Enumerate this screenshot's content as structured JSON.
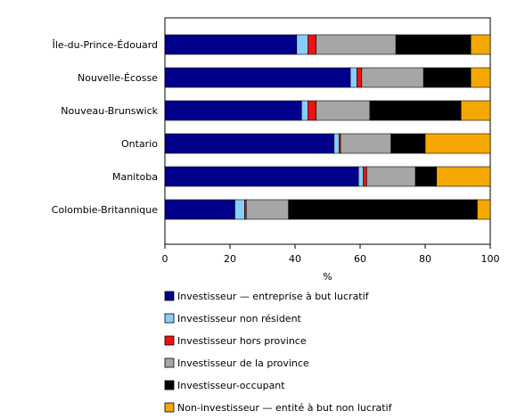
{
  "chart_data": {
    "type": "bar",
    "orientation": "horizontal",
    "stacked": true,
    "xlabel": "%",
    "xlim": [
      0,
      100
    ],
    "xticks": [
      "0",
      "20",
      "40",
      "60",
      "80",
      "100"
    ],
    "grid": false,
    "legend_position": "bottom",
    "categories": [
      "Île-du-Prince-Édouard",
      "Nouvelle-Écosse",
      "Nouveau-Brunswick",
      "Ontario",
      "Manitoba",
      "Colombie-Britannique"
    ],
    "series": [
      {
        "name": "Investisseur — entreprise à but lucratif",
        "color": "#00008b",
        "values": [
          40.5,
          57.0,
          42.0,
          52.0,
          59.5,
          21.5
        ]
      },
      {
        "name": "Investisseur non résident",
        "color": "#87cefa",
        "values": [
          3.5,
          2.0,
          2.0,
          1.5,
          1.5,
          3.0
        ]
      },
      {
        "name": "Investisseur hors province",
        "color": "#ee1111",
        "values": [
          2.5,
          1.5,
          2.5,
          0.5,
          1.0,
          0.5
        ]
      },
      {
        "name": "Investisseur de la province",
        "color": "#a6a6a6",
        "values": [
          24.5,
          19.0,
          16.5,
          15.5,
          15.0,
          13.0
        ]
      },
      {
        "name": "Investisseur-occupant",
        "color": "#000000",
        "values": [
          23.0,
          14.5,
          28.0,
          10.5,
          6.5,
          58.0
        ]
      },
      {
        "name": "Non-investisseur — entité à but non lucratif",
        "color": "#f5a800",
        "values": [
          6.0,
          6.0,
          9.0,
          20.0,
          16.5,
          4.0
        ]
      }
    ]
  }
}
